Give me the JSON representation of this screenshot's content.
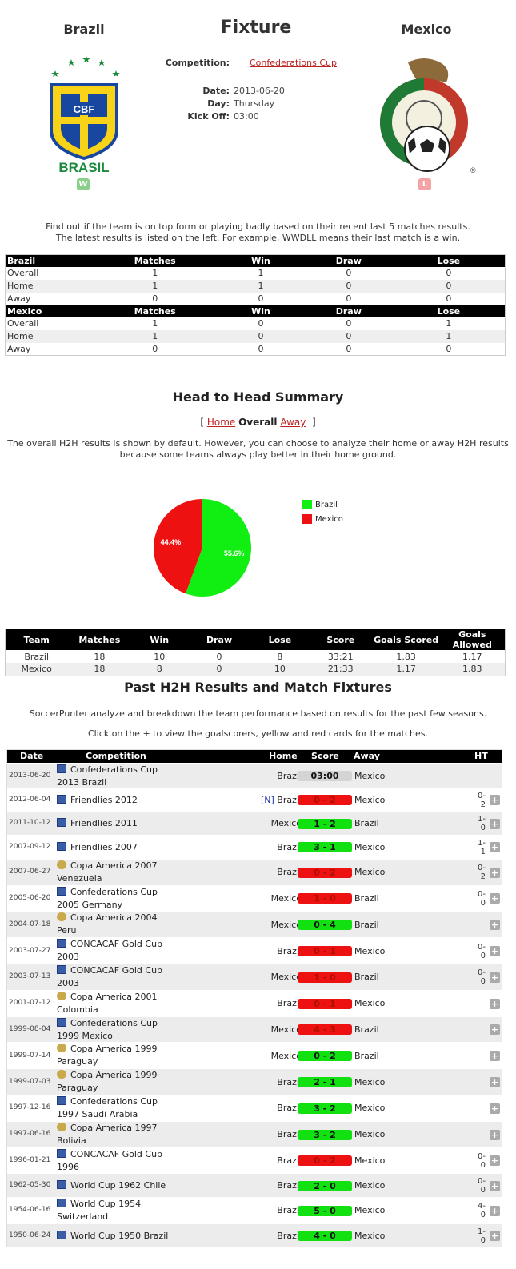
{
  "header": {
    "home_team": "Brazil",
    "away_team": "Mexico",
    "title": "Fixture",
    "competition_label": "Competition:",
    "competition": "Confederations Cup",
    "date_label": "Date:",
    "date": "2013-06-20",
    "day_label": "Day:",
    "day": "Thursday",
    "kickoff_label": "Kick Off:",
    "kickoff": "03:00",
    "home_logo_text": "BRASIL",
    "home_logo_badge": "CBF",
    "home_form": "W",
    "away_form": "L"
  },
  "intro": {
    "line1": "Find out if the team is on top form or playing badly based on their recent last 5 matches results.",
    "line2": "The latest results is listed on the left. For example, WWDLL means their last match is a win."
  },
  "form_table": {
    "columns": [
      "Matches",
      "Win",
      "Draw",
      "Lose"
    ],
    "teams": [
      {
        "name": "Brazil",
        "rows": [
          {
            "label": "Overall",
            "values": [
              "1",
              "1",
              "0",
              "0"
            ]
          },
          {
            "label": "Home",
            "values": [
              "1",
              "1",
              "0",
              "0"
            ]
          },
          {
            "label": "Away",
            "values": [
              "0",
              "0",
              "0",
              "0"
            ]
          }
        ]
      },
      {
        "name": "Mexico",
        "rows": [
          {
            "label": "Overall",
            "values": [
              "1",
              "0",
              "0",
              "1"
            ]
          },
          {
            "label": "Home",
            "values": [
              "1",
              "0",
              "0",
              "1"
            ]
          },
          {
            "label": "Away",
            "values": [
              "0",
              "0",
              "0",
              "0"
            ]
          }
        ]
      }
    ]
  },
  "h2h": {
    "title": "Head to Head Summary",
    "tab_open": "[",
    "tab_home": "Home",
    "tab_overall": "Overall",
    "tab_away": "Away",
    "tab_close": "]",
    "desc1": "The overall H2H results is shown by default. However, you can choose to analyze their home or away H2H results",
    "desc2": "because some teams always play better in their home ground."
  },
  "chart_data": {
    "type": "pie",
    "labels": [
      "Brazil",
      "Mexico"
    ],
    "values": [
      55.6,
      44.4
    ],
    "value_labels": [
      "55.6%",
      "44.4%"
    ],
    "colors": [
      "#11ee11",
      "#ee1111"
    ],
    "legend": "right"
  },
  "summary_table": {
    "columns": [
      "Team",
      "Matches",
      "Win",
      "Draw",
      "Lose",
      "Score",
      "Goals Scored",
      "Goals Allowed"
    ],
    "rows": [
      [
        "Brazil",
        "18",
        "10",
        "0",
        "8",
        "33:21",
        "1.83",
        "1.17"
      ],
      [
        "Mexico",
        "18",
        "8",
        "0",
        "10",
        "21:33",
        "1.17",
        "1.83"
      ]
    ]
  },
  "past": {
    "title": "Past H2H Results and Match Fixtures",
    "desc1": "SoccerPunter analyze and breakdown the team performance based on results for the past few seasons.",
    "desc2": "Click on the + to view the goalscorers, yellow and red cards for the matches.",
    "columns": {
      "date": "Date",
      "competition": "Competition",
      "home": "Home",
      "score": "Score",
      "away": "Away",
      "ht": "HT"
    },
    "plus": "+",
    "neutral": "[N]",
    "rows": [
      {
        "date": "2013-06-20",
        "comp1": "Confederations Cup",
        "comp2": "2013 Brazil",
        "icon": "conf",
        "home": "Brazil",
        "score": "03:00",
        "away": "Mexico",
        "ht1": "",
        "ht2": "",
        "result": "pend",
        "neutral": false,
        "plus": false
      },
      {
        "date": "2012-06-04",
        "comp1": "Friendlies 2012",
        "comp2": "",
        "icon": "conf",
        "home": "Brazil",
        "score": "0 - 2",
        "away": "Mexico",
        "ht1": "0-",
        "ht2": "2",
        "result": "loss",
        "neutral": true,
        "plus": true
      },
      {
        "date": "2011-10-12",
        "comp1": "Friendlies 2011",
        "comp2": "",
        "icon": "conf",
        "home": "Mexico",
        "score": "1 - 2",
        "away": "Brazil",
        "ht1": "1-",
        "ht2": "0",
        "result": "win",
        "neutral": false,
        "plus": true
      },
      {
        "date": "2007-09-12",
        "comp1": "Friendlies 2007",
        "comp2": "",
        "icon": "conf",
        "home": "Brazil",
        "score": "3 - 1",
        "away": "Mexico",
        "ht1": "1-",
        "ht2": "1",
        "result": "win",
        "neutral": false,
        "plus": true
      },
      {
        "date": "2007-06-27",
        "comp1": "Copa America 2007",
        "comp2": "Venezuela",
        "icon": "copa",
        "home": "Brazil",
        "score": "0 - 2",
        "away": "Mexico",
        "ht1": "0-",
        "ht2": "2",
        "result": "loss",
        "neutral": false,
        "plus": true
      },
      {
        "date": "2005-06-20",
        "comp1": "Confederations Cup",
        "comp2": "2005 Germany",
        "icon": "conf",
        "home": "Mexico",
        "score": "1 - 0",
        "away": "Brazil",
        "ht1": "0-",
        "ht2": "0",
        "result": "loss",
        "neutral": false,
        "plus": true
      },
      {
        "date": "2004-07-18",
        "comp1": "Copa America 2004",
        "comp2": "Peru",
        "icon": "copa",
        "home": "Mexico",
        "score": "0 - 4",
        "away": "Brazil",
        "ht1": "",
        "ht2": "",
        "result": "win",
        "neutral": false,
        "plus": true
      },
      {
        "date": "2003-07-27",
        "comp1": "CONCACAF Gold Cup",
        "comp2": "2003",
        "icon": "gold",
        "home": "Brazil",
        "score": "0 - 1",
        "away": "Mexico",
        "ht1": "0-",
        "ht2": "0",
        "result": "loss",
        "neutral": false,
        "plus": true
      },
      {
        "date": "2003-07-13",
        "comp1": "CONCACAF Gold Cup",
        "comp2": "2003",
        "icon": "gold",
        "home": "Mexico",
        "score": "1 - 0",
        "away": "Brazil",
        "ht1": "0-",
        "ht2": "0",
        "result": "loss",
        "neutral": false,
        "plus": true
      },
      {
        "date": "2001-07-12",
        "comp1": "Copa America 2001",
        "comp2": "Colombia",
        "icon": "copa",
        "home": "Brazil",
        "score": "0 - 1",
        "away": "Mexico",
        "ht1": "",
        "ht2": "",
        "result": "loss",
        "neutral": false,
        "plus": true
      },
      {
        "date": "1999-08-04",
        "comp1": "Confederations Cup",
        "comp2": "1999 Mexico",
        "icon": "conf",
        "home": "Mexico",
        "score": "4 - 3",
        "away": "Brazil",
        "ht1": "",
        "ht2": "",
        "result": "loss",
        "neutral": false,
        "plus": true
      },
      {
        "date": "1999-07-14",
        "comp1": "Copa America 1999",
        "comp2": "Paraguay",
        "icon": "copa",
        "home": "Mexico",
        "score": "0 - 2",
        "away": "Brazil",
        "ht1": "",
        "ht2": "",
        "result": "win",
        "neutral": false,
        "plus": true
      },
      {
        "date": "1999-07-03",
        "comp1": "Copa America 1999",
        "comp2": "Paraguay",
        "icon": "copa",
        "home": "Brazil",
        "score": "2 - 1",
        "away": "Mexico",
        "ht1": "",
        "ht2": "",
        "result": "win",
        "neutral": false,
        "plus": true
      },
      {
        "date": "1997-12-16",
        "comp1": "Confederations Cup",
        "comp2": "1997 Saudi Arabia",
        "icon": "conf",
        "home": "Brazil",
        "score": "3 - 2",
        "away": "Mexico",
        "ht1": "",
        "ht2": "",
        "result": "win",
        "neutral": false,
        "plus": true
      },
      {
        "date": "1997-06-16",
        "comp1": "Copa America 1997",
        "comp2": "Bolivia",
        "icon": "copa",
        "home": "Brazil",
        "score": "3 - 2",
        "away": "Mexico",
        "ht1": "",
        "ht2": "",
        "result": "win",
        "neutral": false,
        "plus": true
      },
      {
        "date": "1996-01-21",
        "comp1": "CONCACAF Gold Cup",
        "comp2": "1996",
        "icon": "gold",
        "home": "Brazil",
        "score": "0 - 2",
        "away": "Mexico",
        "ht1": "0-",
        "ht2": "0",
        "result": "loss",
        "neutral": false,
        "plus": true
      },
      {
        "date": "1962-05-30",
        "comp1": "World Cup 1962 Chile",
        "comp2": "",
        "icon": "conf",
        "home": "Brazil",
        "score": "2 - 0",
        "away": "Mexico",
        "ht1": "0-",
        "ht2": "0",
        "result": "win",
        "neutral": false,
        "plus": true
      },
      {
        "date": "1954-06-16",
        "comp1": "World Cup 1954",
        "comp2": "Switzerland",
        "icon": "conf",
        "home": "Brazil",
        "score": "5 - 0",
        "away": "Mexico",
        "ht1": "4-",
        "ht2": "0",
        "result": "win",
        "neutral": false,
        "plus": true
      },
      {
        "date": "1950-06-24",
        "comp1": "World Cup 1950 Brazil",
        "comp2": "",
        "icon": "conf",
        "home": "Brazil",
        "score": "4 - 0",
        "away": "Mexico",
        "ht1": "1-",
        "ht2": "0",
        "result": "win",
        "neutral": false,
        "plus": true
      }
    ]
  }
}
